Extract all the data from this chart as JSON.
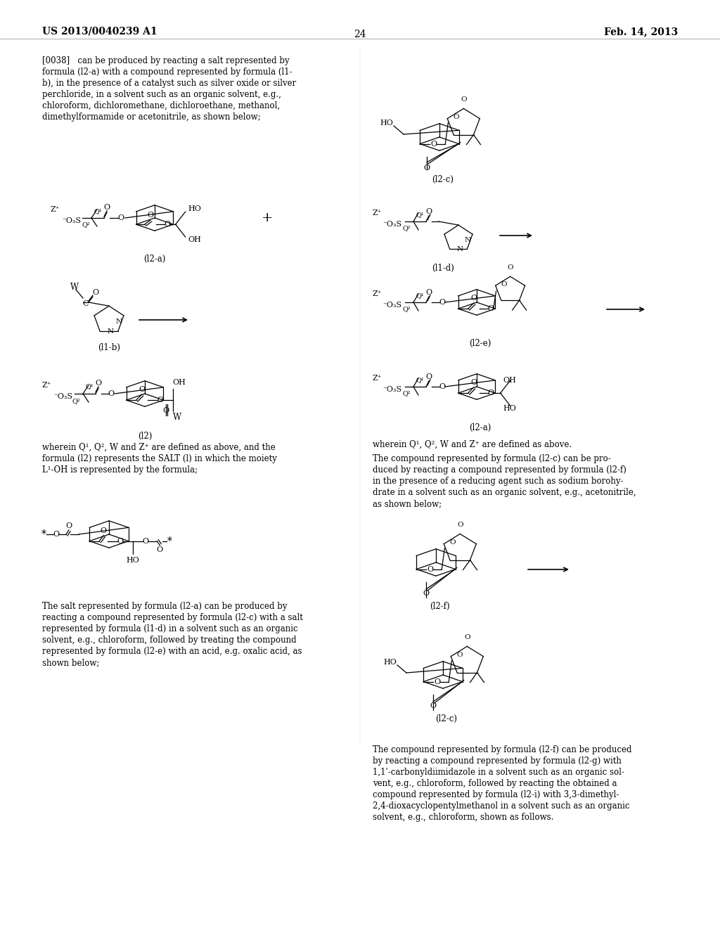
{
  "patent_number": "US 2013/0040239 A1",
  "patent_date": "Feb. 14, 2013",
  "page_number": "24",
  "background_color": "#ffffff",
  "figsize": [
    10.24,
    13.2
  ],
  "dpi": 100
}
